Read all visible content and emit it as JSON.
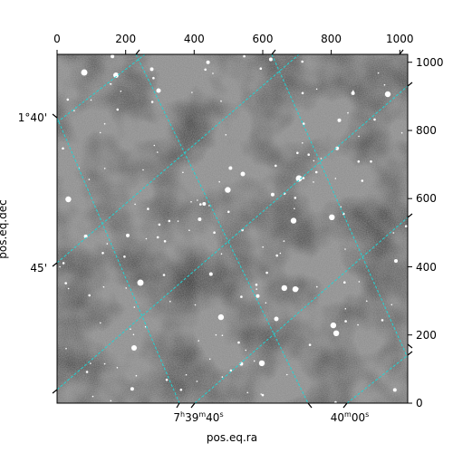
{
  "plot": {
    "xlabel": "pos.eq.ra",
    "ylabel": "pos.eq.dec",
    "pixel_axis": {
      "xlim": [
        0,
        1023
      ],
      "ylim": [
        0,
        1023
      ],
      "x_ticks": [
        "0",
        "200",
        "400",
        "600",
        "800",
        "1000"
      ],
      "y_ticks": [
        "0",
        "200",
        "400",
        "600",
        "800",
        "1000"
      ]
    },
    "ra_ticks": [
      {
        "h": "7",
        "m": "39",
        "s": "40",
        "label": "7h39m40s"
      },
      {
        "h": "",
        "m": "40",
        "s": "00",
        "label": "40m00s"
      }
    ],
    "dec_ticks": [
      "1°40'",
      "45'"
    ],
    "grid": true,
    "grid_color": "#22d3d3",
    "image": "grayscale astronomical sky image with scattered bright stars and dark dust lanes"
  }
}
